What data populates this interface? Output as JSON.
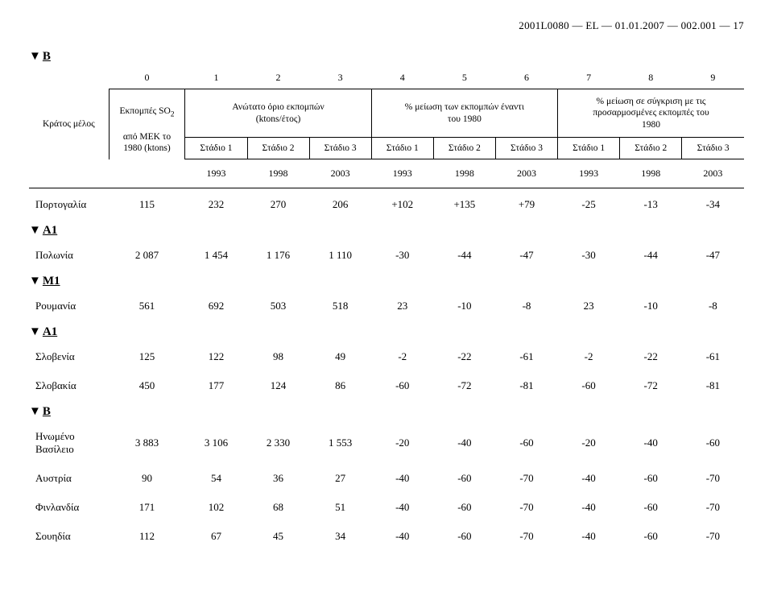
{
  "doc_header": "2001L0080 — EL — 01.01.2007 — 002.001 — 17",
  "markers": {
    "B": "B",
    "A1": "A1",
    "M1": "M1"
  },
  "col_numbers": [
    "0",
    "1",
    "2",
    "3",
    "4",
    "5",
    "6",
    "7",
    "8",
    "9"
  ],
  "head": {
    "state": "Κράτος μέλος",
    "so2": "Εκπομπές SO",
    "so2_sub": "2",
    "so2_line2": "από ΜΕΚ το\n1980 (ktons)",
    "ceiling": "Ανώτατο όριο εκπομπών\n(ktons/έτος)",
    "pct1": "% μείωση των εκπομπών έναντι\nτου 1980",
    "pct2": "% μείωση σε σύγκριση με τις\nπροσαρμοσμένες εκπομπές του\n1980",
    "stage1": "Στάδιο 1",
    "stage2": "Στάδιο 2",
    "stage3": "Στάδιο 3"
  },
  "years": [
    "1993",
    "1998",
    "2003",
    "1993",
    "1998",
    "2003",
    "1993",
    "1998",
    "2003"
  ],
  "rows": {
    "block1": [
      {
        "name": "Πορτογαλία",
        "v": [
          "115",
          "232",
          "270",
          "206",
          "+102",
          "+135",
          "+79",
          "-25",
          "-13",
          "-34"
        ]
      }
    ],
    "block2": [
      {
        "name": "Πολωνία",
        "v": [
          "2 087",
          "1 454",
          "1 176",
          "1 110",
          "-30",
          "-44",
          "-47",
          "-30",
          "-44",
          "-47"
        ]
      }
    ],
    "block3": [
      {
        "name": "Ρουμανία",
        "v": [
          "561",
          "692",
          "503",
          "518",
          "23",
          "-10",
          "-8",
          "23",
          "-10",
          "-8"
        ]
      }
    ],
    "block4": [
      {
        "name": "Σλοβενία",
        "v": [
          "125",
          "122",
          "98",
          "49",
          "-2",
          "-22",
          "-61",
          "-2",
          "-22",
          "-61"
        ]
      },
      {
        "name": "Σλοβακία",
        "v": [
          "450",
          "177",
          "124",
          "86",
          "-60",
          "-72",
          "-81",
          "-60",
          "-72",
          "-81"
        ]
      }
    ],
    "block5": [
      {
        "name": "Ηνωμένο\nΒασίλειο",
        "v": [
          "3 883",
          "3 106",
          "2 330",
          "1 553",
          "-20",
          "-40",
          "-60",
          "-20",
          "-40",
          "-60"
        ]
      },
      {
        "name": "Αυστρία",
        "v": [
          "90",
          "54",
          "36",
          "27",
          "-40",
          "-60",
          "-70",
          "-40",
          "-60",
          "-70"
        ]
      },
      {
        "name": "Φινλανδία",
        "v": [
          "171",
          "102",
          "68",
          "51",
          "-40",
          "-60",
          "-70",
          "-40",
          "-60",
          "-70"
        ]
      },
      {
        "name": "Σουηδία",
        "v": [
          "112",
          "67",
          "45",
          "34",
          "-40",
          "-60",
          "-70",
          "-40",
          "-60",
          "-70"
        ]
      }
    ]
  }
}
